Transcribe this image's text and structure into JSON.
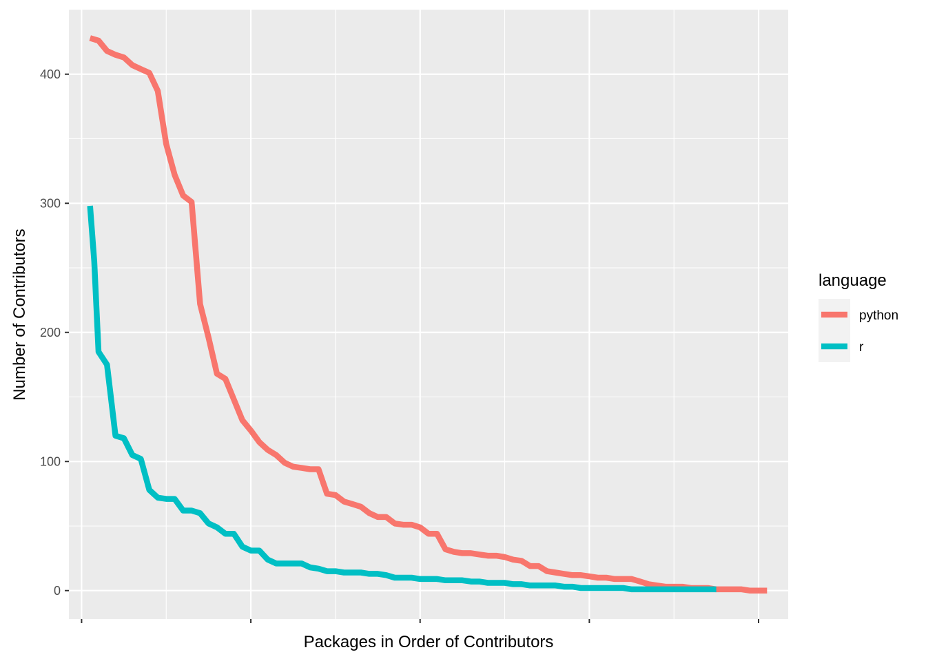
{
  "chart_data": {
    "type": "line",
    "xlabel": "Packages in Order of Contributors",
    "ylabel": "Number of Contributors",
    "xlim": [
      -3,
      167
    ],
    "ylim": [
      -22,
      450
    ],
    "yticks": [
      0,
      100,
      200,
      300,
      400
    ],
    "xticks": [
      0,
      40,
      80,
      120,
      160
    ],
    "grid": true,
    "legend": {
      "title": "language",
      "position": "right"
    },
    "series": [
      {
        "name": "python",
        "color": "#F8766D",
        "points": [
          [
            2,
            428
          ],
          [
            4,
            426
          ],
          [
            6,
            418
          ],
          [
            8,
            415
          ],
          [
            10,
            413
          ],
          [
            12,
            407
          ],
          [
            14,
            404
          ],
          [
            16,
            401
          ],
          [
            18,
            387
          ],
          [
            20,
            346
          ],
          [
            22,
            322
          ],
          [
            24,
            306
          ],
          [
            26,
            301
          ],
          [
            28,
            222
          ],
          [
            30,
            196
          ],
          [
            32,
            168
          ],
          [
            34,
            164
          ],
          [
            36,
            148
          ],
          [
            38,
            132
          ],
          [
            40,
            124
          ],
          [
            42,
            115
          ],
          [
            44,
            109
          ],
          [
            46,
            105
          ],
          [
            48,
            99
          ],
          [
            50,
            96
          ],
          [
            52,
            95
          ],
          [
            54,
            94
          ],
          [
            56,
            94
          ],
          [
            58,
            75
          ],
          [
            60,
            74
          ],
          [
            62,
            69
          ],
          [
            64,
            67
          ],
          [
            66,
            65
          ],
          [
            68,
            60
          ],
          [
            70,
            57
          ],
          [
            72,
            57
          ],
          [
            74,
            52
          ],
          [
            76,
            51
          ],
          [
            78,
            51
          ],
          [
            80,
            49
          ],
          [
            82,
            44
          ],
          [
            84,
            44
          ],
          [
            86,
            32
          ],
          [
            88,
            30
          ],
          [
            90,
            29
          ],
          [
            92,
            29
          ],
          [
            94,
            28
          ],
          [
            96,
            27
          ],
          [
            98,
            27
          ],
          [
            100,
            26
          ],
          [
            102,
            24
          ],
          [
            104,
            23
          ],
          [
            106,
            19
          ],
          [
            108,
            19
          ],
          [
            110,
            15
          ],
          [
            112,
            14
          ],
          [
            114,
            13
          ],
          [
            116,
            12
          ],
          [
            118,
            12
          ],
          [
            120,
            11
          ],
          [
            122,
            10
          ],
          [
            124,
            10
          ],
          [
            126,
            9
          ],
          [
            128,
            9
          ],
          [
            130,
            9
          ],
          [
            132,
            7
          ],
          [
            134,
            5
          ],
          [
            136,
            4
          ],
          [
            138,
            3
          ],
          [
            140,
            3
          ],
          [
            142,
            3
          ],
          [
            144,
            2
          ],
          [
            146,
            2
          ],
          [
            148,
            2
          ],
          [
            150,
            1
          ],
          [
            152,
            1
          ],
          [
            154,
            1
          ],
          [
            156,
            1
          ],
          [
            158,
            0
          ],
          [
            160,
            0
          ],
          [
            162,
            0
          ]
        ]
      },
      {
        "name": "r",
        "color": "#00BFC4",
        "points": [
          [
            2,
            298
          ],
          [
            3,
            255
          ],
          [
            4,
            185
          ],
          [
            6,
            175
          ],
          [
            8,
            120
          ],
          [
            10,
            118
          ],
          [
            12,
            105
          ],
          [
            14,
            102
          ],
          [
            16,
            78
          ],
          [
            18,
            72
          ],
          [
            20,
            71
          ],
          [
            22,
            71
          ],
          [
            24,
            62
          ],
          [
            26,
            62
          ],
          [
            28,
            60
          ],
          [
            30,
            52
          ],
          [
            32,
            49
          ],
          [
            34,
            44
          ],
          [
            36,
            44
          ],
          [
            38,
            34
          ],
          [
            40,
            31
          ],
          [
            42,
            31
          ],
          [
            44,
            24
          ],
          [
            46,
            21
          ],
          [
            48,
            21
          ],
          [
            50,
            21
          ],
          [
            52,
            21
          ],
          [
            54,
            18
          ],
          [
            56,
            17
          ],
          [
            58,
            15
          ],
          [
            60,
            15
          ],
          [
            62,
            14
          ],
          [
            64,
            14
          ],
          [
            66,
            14
          ],
          [
            68,
            13
          ],
          [
            70,
            13
          ],
          [
            72,
            12
          ],
          [
            74,
            10
          ],
          [
            76,
            10
          ],
          [
            78,
            10
          ],
          [
            80,
            9
          ],
          [
            82,
            9
          ],
          [
            84,
            9
          ],
          [
            86,
            8
          ],
          [
            88,
            8
          ],
          [
            90,
            8
          ],
          [
            92,
            7
          ],
          [
            94,
            7
          ],
          [
            96,
            6
          ],
          [
            98,
            6
          ],
          [
            100,
            6
          ],
          [
            102,
            5
          ],
          [
            104,
            5
          ],
          [
            106,
            4
          ],
          [
            108,
            4
          ],
          [
            110,
            4
          ],
          [
            112,
            4
          ],
          [
            114,
            3
          ],
          [
            116,
            3
          ],
          [
            118,
            2
          ],
          [
            120,
            2
          ],
          [
            122,
            2
          ],
          [
            124,
            2
          ],
          [
            126,
            2
          ],
          [
            128,
            2
          ],
          [
            130,
            1
          ],
          [
            132,
            1
          ],
          [
            134,
            1
          ],
          [
            136,
            1
          ],
          [
            138,
            1
          ],
          [
            140,
            1
          ],
          [
            142,
            1
          ],
          [
            144,
            1
          ],
          [
            146,
            1
          ],
          [
            148,
            1
          ],
          [
            150,
            1
          ]
        ]
      }
    ]
  }
}
